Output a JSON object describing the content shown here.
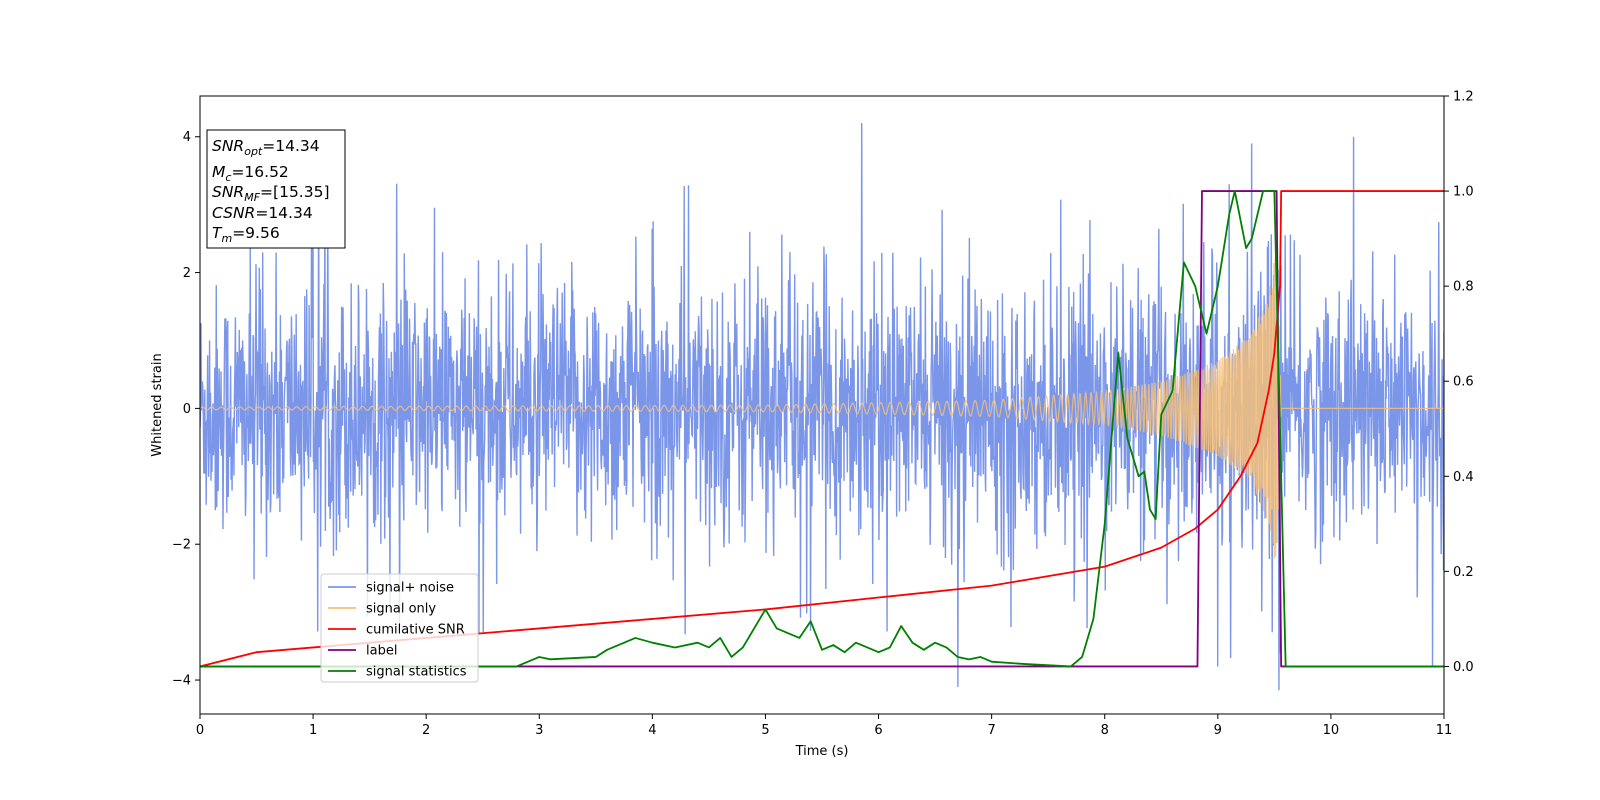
{
  "chart_data": {
    "type": "line",
    "xlabel": "Time (s)",
    "ylabel": "Whitened strain",
    "xlim": [
      0,
      11
    ],
    "ylim": [
      -4.5,
      4.6
    ],
    "y2lim": [
      -0.1,
      1.2
    ],
    "x_ticks": [
      "0",
      "1",
      "2",
      "3",
      "4",
      "5",
      "6",
      "7",
      "8",
      "9",
      "10",
      "11"
    ],
    "y_ticks": [
      "4",
      "2",
      "0",
      "−2",
      "−4"
    ],
    "y2_ticks": [
      "1.2",
      "1.0",
      "0.8",
      "0.6",
      "0.4",
      "0.2",
      "0.0"
    ],
    "grid": false,
    "legend_position": "lower-left",
    "annotation": {
      "lines": [
        {
          "base": "SNR",
          "sub": "opt",
          "value": "=14.34"
        },
        {
          "base": "M",
          "sub": "c",
          "value": "=16.52"
        },
        {
          "base": "SNR",
          "sub": "MF",
          "value": "=[15.35]"
        },
        {
          "base": "CSNR",
          "sub": "",
          "value": "=14.34"
        },
        {
          "base": "T",
          "sub": "m",
          "value": "=9.56"
        }
      ]
    },
    "series": [
      {
        "name": "signal+ noise",
        "color": "#7b96e8",
        "axis": "left",
        "description": "noise band approx. +/-1.5 with spikes to +/-3; max ~4.2 at t=5.85, min ~-4.1 at t=6.7",
        "spikes": [
          [
            5.85,
            4.2
          ],
          [
            6.7,
            -4.1
          ],
          [
            1.0,
            3.5
          ],
          [
            9.1,
            3.3
          ],
          [
            9.3,
            3.9
          ],
          [
            10.2,
            4.0
          ],
          [
            9.0,
            -3.8
          ],
          [
            10.9,
            -3.8
          ],
          [
            9.55,
            -3.6
          ]
        ]
      },
      {
        "name": "signal only",
        "color": "#f5c07a",
        "axis": "left",
        "chirp_amplitude": [
          [
            0,
            0.02
          ],
          [
            5,
            0.05
          ],
          [
            7,
            0.12
          ],
          [
            8,
            0.25
          ],
          [
            8.5,
            0.4
          ],
          [
            9,
            0.7
          ],
          [
            9.3,
            1.1
          ],
          [
            9.45,
            1.7
          ],
          [
            9.53,
            2.5
          ],
          [
            9.56,
            0.0
          ],
          [
            11,
            0.0
          ]
        ]
      },
      {
        "name": "cumilative SNR",
        "color": "#ff0000",
        "axis": "right",
        "x": [
          0,
          0.5,
          1,
          2,
          3,
          4,
          5,
          6,
          7,
          7.5,
          8,
          8.5,
          8.8,
          9.0,
          9.2,
          9.35,
          9.45,
          9.5,
          9.55,
          9.56,
          9.6,
          11
        ],
        "y": [
          0.0,
          0.03,
          0.04,
          0.06,
          0.08,
          0.1,
          0.12,
          0.145,
          0.17,
          0.19,
          0.21,
          0.25,
          0.29,
          0.33,
          0.4,
          0.47,
          0.58,
          0.66,
          0.8,
          1.0,
          1.0,
          1.0
        ]
      },
      {
        "name": "label",
        "color": "#800080",
        "axis": "right",
        "x": [
          0,
          8.82,
          8.86,
          9.52,
          9.56,
          11
        ],
        "y": [
          0.0,
          0.0,
          1.0,
          1.0,
          0.0,
          0.0
        ]
      },
      {
        "name": "signal statistics",
        "color": "#008000",
        "axis": "right",
        "x": [
          0,
          2.8,
          3.0,
          3.1,
          3.5,
          3.6,
          3.85,
          4.0,
          4.2,
          4.4,
          4.5,
          4.6,
          4.7,
          4.8,
          5.0,
          5.1,
          5.2,
          5.3,
          5.4,
          5.5,
          5.6,
          5.7,
          5.8,
          5.9,
          6.0,
          6.1,
          6.2,
          6.3,
          6.4,
          6.5,
          6.6,
          6.7,
          6.8,
          6.9,
          7.0,
          7.3,
          7.7,
          7.8,
          7.9,
          8.0,
          8.12,
          8.2,
          8.3,
          8.35,
          8.4,
          8.45,
          8.5,
          8.6,
          8.7,
          8.8,
          8.85,
          8.9,
          9.0,
          9.1,
          9.15,
          9.25,
          9.3,
          9.4,
          9.5,
          9.55,
          9.6,
          11
        ],
        "y": [
          0.0,
          0.0,
          0.02,
          0.015,
          0.02,
          0.035,
          0.06,
          0.05,
          0.04,
          0.05,
          0.04,
          0.06,
          0.02,
          0.04,
          0.12,
          0.08,
          0.07,
          0.06,
          0.095,
          0.035,
          0.045,
          0.03,
          0.05,
          0.04,
          0.03,
          0.04,
          0.085,
          0.05,
          0.035,
          0.05,
          0.04,
          0.02,
          0.015,
          0.02,
          0.01,
          0.005,
          0.0,
          0.02,
          0.1,
          0.3,
          0.66,
          0.48,
          0.4,
          0.41,
          0.33,
          0.31,
          0.53,
          0.58,
          0.85,
          0.8,
          0.75,
          0.7,
          0.8,
          0.95,
          1.0,
          0.88,
          0.9,
          1.0,
          1.0,
          0.5,
          0.0,
          0.0
        ]
      }
    ]
  }
}
